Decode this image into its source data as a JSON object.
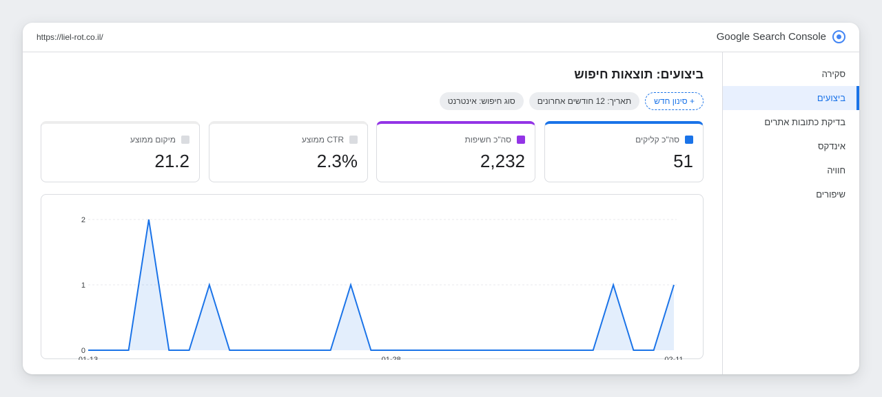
{
  "topbar": {
    "url": "https://liel-rot.co.il/",
    "brand": "Google Search Console",
    "brand_icon": "target-icon"
  },
  "sidebar": {
    "items": [
      {
        "label": "סקירה",
        "active": false
      },
      {
        "label": "ביצועים",
        "active": true
      },
      {
        "label": "בדיקת כתובות אתרים",
        "active": false
      },
      {
        "label": "אינדקס",
        "active": false
      },
      {
        "label": "חוויה",
        "active": false
      },
      {
        "label": "שיפורים",
        "active": false
      }
    ]
  },
  "main": {
    "title": "ביצועים: תוצאות חיפוש",
    "filters": {
      "search_type": "סוג חיפוש: אינטרנט",
      "date": "תאריך: 12 חודשים אחרונים",
      "add_filter": "+ סינון חדש"
    },
    "cards": [
      {
        "label": "סה\"כ קליקים",
        "value": "51",
        "color": "#1a73e8",
        "selected": true
      },
      {
        "label": "סה\"כ חשיפות",
        "value": "2,232",
        "color": "#9334e6",
        "selected": true
      },
      {
        "label": "CTR ממוצע",
        "value": "2.3%",
        "color": "#dadce0",
        "selected": false
      },
      {
        "label": "מיקום ממוצע",
        "value": "21.2",
        "color": "#dadce0",
        "selected": false
      }
    ]
  },
  "chart_data": {
    "type": "area",
    "x_ticks": [
      "01-13",
      "01-28",
      "02-11"
    ],
    "y_ticks": [
      "0",
      "1",
      "2"
    ],
    "ylim": [
      0,
      2
    ],
    "grid": true,
    "series": [
      {
        "color": "#1a73e8",
        "values": [
          0,
          0,
          0,
          2,
          0,
          0,
          1,
          0,
          0,
          0,
          0,
          0,
          0,
          1,
          0,
          0,
          0,
          0,
          0,
          0,
          0,
          0,
          0,
          0,
          0,
          0,
          1,
          0,
          0,
          1
        ]
      }
    ]
  }
}
